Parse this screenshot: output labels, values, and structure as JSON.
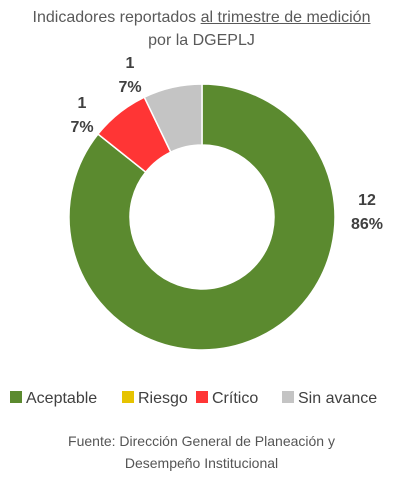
{
  "chart_data": {
    "type": "donut",
    "title": [
      "Indicadores reportados ",
      "al trimestre de medición ",
      "por la DGEPLJ"
    ],
    "categories": [
      "Aceptable",
      "Riesgo",
      "Crítico",
      "Sin avance"
    ],
    "values": [
      12,
      0,
      1,
      1
    ],
    "percent_labels": [
      "86%",
      null,
      "7%",
      "7%"
    ],
    "colors": [
      "#5b8a2f",
      "#e6c300",
      "#ff3535",
      "#c4c4c4"
    ],
    "legend": "bottom",
    "note": "Fuente: Dirección General de Planeación y Desempeño Institucional"
  }
}
